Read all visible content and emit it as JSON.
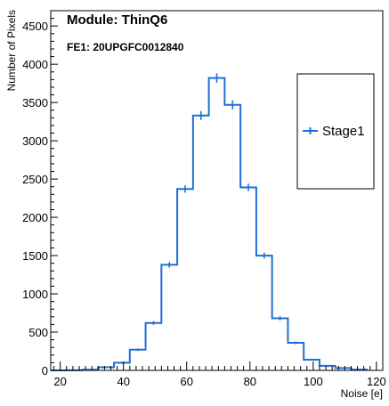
{
  "chart_data": {
    "type": "histogram",
    "title": "Module: ThinQ6",
    "subtitle": "FE1: 20UPGFC0012840",
    "xlabel": "Noise [e]",
    "ylabel": "Number of Pixels",
    "xlim": [
      17,
      122
    ],
    "ylim": [
      0,
      4700
    ],
    "x_ticks": [
      20,
      40,
      60,
      80,
      100,
      120
    ],
    "y_ticks": [
      0,
      500,
      1000,
      1500,
      2000,
      2500,
      3000,
      3500,
      4000,
      4500
    ],
    "grid": false,
    "legend_position": "right",
    "line_color": "#1f6fd8",
    "series": [
      {
        "name": "Stage1",
        "bin_edges": [
          17,
          22,
          27,
          32,
          37,
          42,
          47,
          52,
          57,
          62,
          67,
          72,
          77,
          82,
          87,
          92,
          97,
          102,
          107,
          112,
          117
        ],
        "values": [
          0,
          2,
          8,
          40,
          100,
          270,
          620,
          1380,
          2370,
          3330,
          3820,
          3470,
          2390,
          1500,
          680,
          360,
          140,
          60,
          30,
          10
        ]
      }
    ]
  }
}
